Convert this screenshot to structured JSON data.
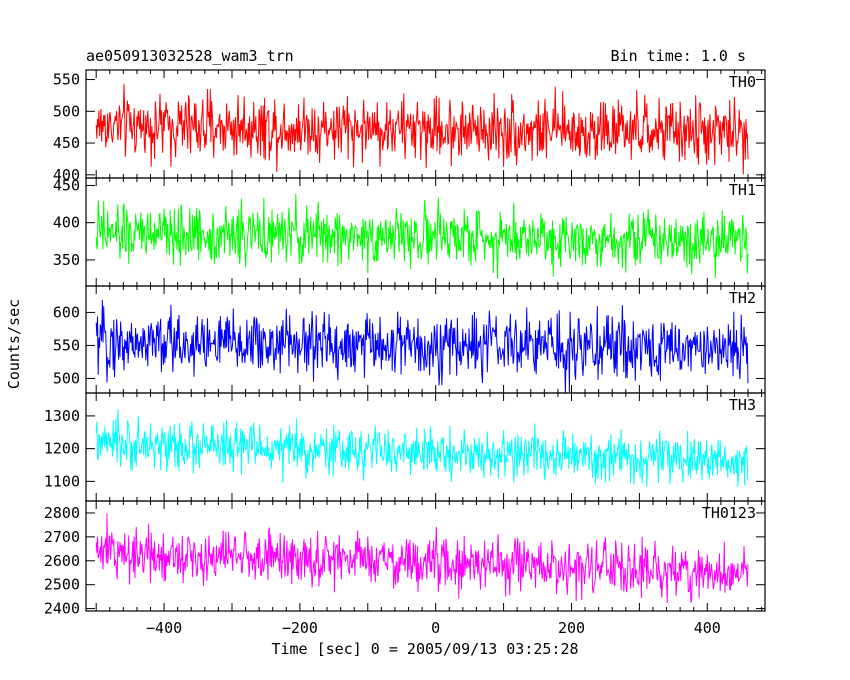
{
  "header": {
    "title": "ae050913032528_wam3_trn",
    "bin_time": "Bin time: 1.0 s"
  },
  "chart_data": {
    "type": "line",
    "xlabel": "Time [sec] 0 = 2005/09/13 03:25:28",
    "ylabel": "Counts/sec",
    "xlim": [
      -515,
      485
    ],
    "x_range": [
      -500,
      460
    ],
    "x_step": 1.0,
    "x_ticks": [
      -400,
      -200,
      0,
      200,
      400
    ],
    "grid": false,
    "panels": [
      {
        "name": "TH0",
        "color": "#ff0000",
        "ylim": [
          395,
          565
        ],
        "ticks": [
          400,
          450,
          500,
          550
        ],
        "mean": 478,
        "sigma": 25,
        "trend_end": 466
      },
      {
        "name": "TH1",
        "color": "#00ff00",
        "ylim": [
          315,
          460
        ],
        "ticks": [
          350,
          400,
          450
        ],
        "mean": 385,
        "sigma": 19,
        "trend_end": 378
      },
      {
        "name": "TH2",
        "color": "#0000ff",
        "ylim": [
          478,
          640
        ],
        "ticks": [
          500,
          550,
          600
        ],
        "mean": 555,
        "sigma": 24,
        "trend_end": 545
      },
      {
        "name": "TH3",
        "color": "#00ffff",
        "ylim": [
          1040,
          1370
        ],
        "ticks": [
          1100,
          1200,
          1300
        ],
        "mean": 1215,
        "sigma": 36,
        "trend_end": 1160
      },
      {
        "name": "TH0123",
        "color": "#ff00ff",
        "ylim": [
          2390,
          2850
        ],
        "ticks": [
          2400,
          2500,
          2600,
          2700,
          2800
        ],
        "mean": 2640,
        "sigma": 55,
        "trend_end": 2545
      }
    ]
  }
}
